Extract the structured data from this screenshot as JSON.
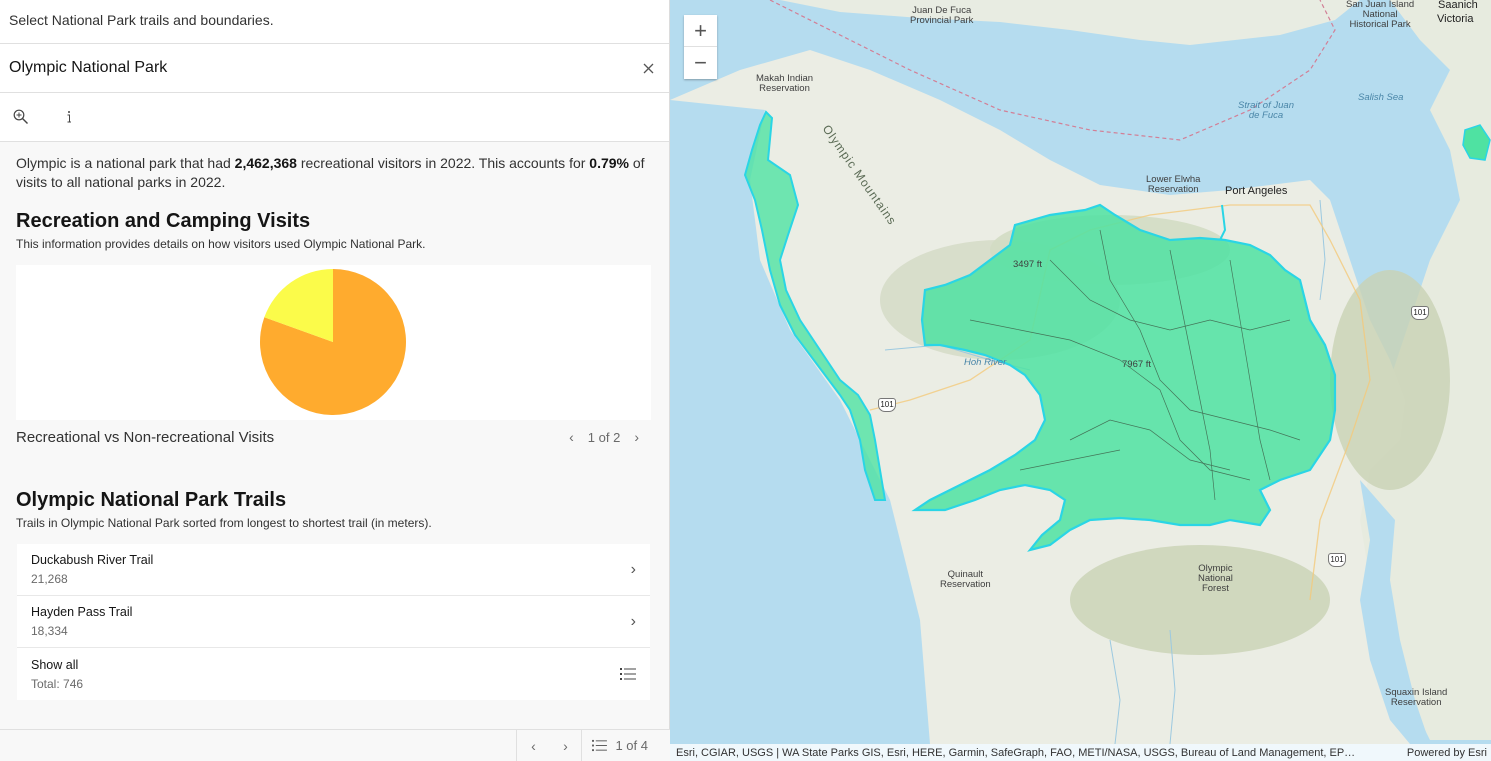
{
  "panel": {
    "instruction": "Select National Park trails and boundaries.",
    "feature_title": "Olympic National Park",
    "summary": {
      "pre": "Olympic is a national park that had ",
      "visitors": "2,462,368",
      "mid": " recreational visitors in 2022. This accounts for ",
      "percent": "0.79%",
      "post": " of visits to all national parks in 2022."
    },
    "recreation": {
      "title": "Recreation and Camping Visits",
      "description": "This information provides details on how visitors used Olympic National Park.",
      "chart_caption": "Recreational vs Non-recreational Visits",
      "pager": "1 of 2"
    },
    "trails": {
      "title": "Olympic National Park Trails",
      "description": "Trails in Olympic National Park sorted from longest to shortest trail (in meters).",
      "items": [
        {
          "name": "Duckabush River Trail",
          "value": "21,268"
        },
        {
          "name": "Hayden Pass Trail",
          "value": "18,334"
        }
      ],
      "show_all": "Show all",
      "total": "Total: 746"
    },
    "footer_pager": "1 of 4"
  },
  "chart_data": {
    "type": "pie",
    "slices": [
      {
        "value": 80.5,
        "color": "#ffab2e"
      },
      {
        "value": 19.5,
        "color": "#fbfb4a"
      }
    ]
  },
  "map": {
    "attribution": "Esri, CGIAR, USGS | WA State Parks GIS, Esri, HERE, Garmin, SafeGraph, FAO, METI/NASA, USGS, Bureau of Land Management, EP…",
    "powered_by": "Powered by Esri",
    "labels": {
      "juan_de_fuca_park": "Juan De Fuca\nProvincial Park",
      "saanich": "Saanich",
      "victoria": "Victoria",
      "san_juan": "San Juan Island\nNational\nHistorical Park",
      "makah": "Makah Indian\nReservation",
      "strait": "Strait of Juan\nde Fuca",
      "salish": "Salish Sea",
      "lower_elwha": "Lower Elwha\nReservation",
      "port_angeles": "Port Angeles",
      "olympic_mountains": "Olympic Mountains",
      "quinault": "Quinault\nReservation",
      "olympic_forest": "Olympic\nNational\nForest",
      "squaxin": "Squaxin Island\nReservation",
      "hoh_river": "Hoh River",
      "peak_1": "3497 ft",
      "peak_2": "7967 ft",
      "route_101": "101"
    }
  }
}
